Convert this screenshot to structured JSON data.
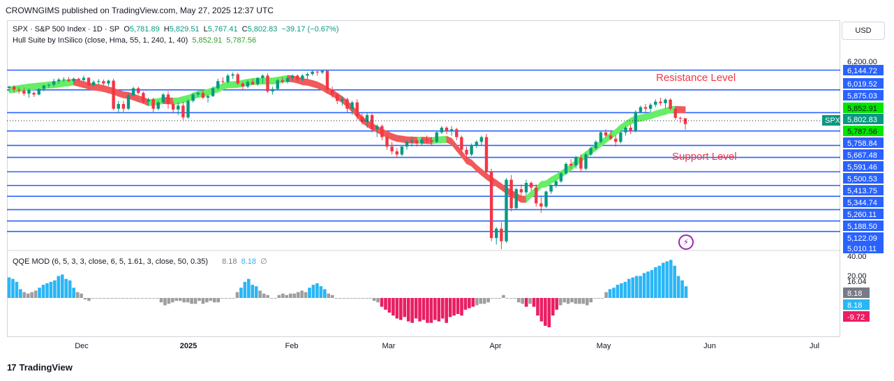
{
  "header": {
    "text": "CROWNGIMS published on TradingView.com, May 27, 2025 12:37 UTC"
  },
  "currency": "USD",
  "legend": {
    "symbol": "SPX · S&P 500 Index · 1D · SP",
    "o_label": "O",
    "o": "5,781.89",
    "h_label": "H",
    "h": "5,829.51",
    "l_label": "L",
    "l": "5,767.41",
    "c_label": "C",
    "c": "5,802.83",
    "change": "−39.17 (−0.67%)",
    "hull_label": "Hull Suite by InSilico (close, Hma, 55, 1, 240, 1, 40)",
    "hull_v1": "5,852.91",
    "hull_v2": "5,787.56",
    "qqe_label": "QQE MOD (6, 5, 3, 3, close, 6, 5, 1.61, 3, close, 50, 0.35)",
    "qqe_v1": "8.18",
    "qqe_v2": "8.18",
    "qqe_sym": "∅"
  },
  "annotations": {
    "resistance": "Resistance Level",
    "support": "Support Level"
  },
  "footer": {
    "brand": "TradingView"
  },
  "colors": {
    "up": "#089981",
    "down": "#f23645",
    "level": "#2962ff",
    "hull_up": "#66ee66",
    "hull_down": "#f05a5a",
    "qqe_up": "#29b6f6",
    "qqe_down": "#e91e63",
    "qqe_neutral": "#9e9e9e"
  },
  "chart_data": {
    "type": "candlestick",
    "title": "SPX · S&P 500 Index · 1D · SP",
    "price_ylim": [
      5010.11,
      6200.0
    ],
    "x_tick_labels": [
      "Dec",
      "2025",
      "Feb",
      "Mar",
      "Apr",
      "May",
      "Jun",
      "Jul"
    ],
    "price_axis_labels": [
      "6,200.00",
      "6,144.72",
      "6,019.52",
      "5,875.03",
      "5,852.91",
      "5,802.83",
      "5,787.56",
      "5,758.84",
      "5,667.48",
      "5,591.46",
      "5,500.53",
      "5,413.75",
      "5,344.74",
      "5,260.11",
      "5,188.50",
      "5,122.09",
      "5,010.11"
    ],
    "horizontal_levels": [
      6144.72,
      6019.52,
      5875.03,
      5758.84,
      5667.48,
      5591.46,
      5500.53,
      5413.75,
      5344.74,
      5260.11,
      5188.5,
      5122.09
    ],
    "last_price": {
      "label": "SPX",
      "value": "5,802.83"
    },
    "hull_values": [
      "5,852.91",
      "5,787.56"
    ],
    "candles": [
      [
        6032,
        6047,
        6010,
        6040
      ],
      [
        6040,
        6050,
        6002,
        6021
      ],
      [
        6021,
        6036,
        5995,
        6015
      ],
      [
        6015,
        6035,
        5982,
        5996
      ],
      [
        5996,
        6029,
        5970,
        6020
      ],
      [
        6000,
        6010,
        5975,
        5990
      ],
      [
        5990,
        6030,
        5985,
        6025
      ],
      [
        6025,
        6052,
        6010,
        6047
      ],
      [
        6047,
        6060,
        6030,
        6052
      ],
      [
        6052,
        6090,
        6040,
        6075
      ],
      [
        6075,
        6095,
        6060,
        6085
      ],
      [
        6085,
        6100,
        6070,
        6086
      ],
      [
        6086,
        6102,
        6070,
        6075
      ],
      [
        6075,
        6098,
        6060,
        6090
      ],
      [
        6090,
        6096,
        6070,
        6082
      ],
      [
        6082,
        6110,
        6075,
        6096
      ],
      [
        6096,
        6100,
        6040,
        6050
      ],
      [
        6050,
        6080,
        6040,
        6070
      ],
      [
        6070,
        6088,
        6055,
        6075
      ],
      [
        6075,
        6085,
        6050,
        6060
      ],
      [
        6060,
        6085,
        6045,
        6078
      ],
      [
        6078,
        6090,
        5890,
        5900
      ],
      [
        5900,
        5950,
        5870,
        5930
      ],
      [
        5930,
        5950,
        5880,
        5900
      ],
      [
        5900,
        6000,
        5890,
        5985
      ],
      [
        5985,
        6040,
        5980,
        6030
      ],
      [
        6030,
        6040,
        5990,
        6000
      ],
      [
        6000,
        6010,
        5930,
        5945
      ],
      [
        5945,
        5970,
        5920,
        5960
      ],
      [
        5960,
        5970,
        5880,
        5900
      ],
      [
        5900,
        5950,
        5890,
        5940
      ],
      [
        5940,
        6000,
        5930,
        5990
      ],
      [
        5990,
        6010,
        5900,
        5930
      ],
      [
        5930,
        5945,
        5870,
        5895
      ],
      [
        5895,
        5940,
        5860,
        5920
      ],
      [
        5920,
        5945,
        5830,
        5845
      ],
      [
        5845,
        5960,
        5835,
        5950
      ],
      [
        5950,
        6000,
        5940,
        5990
      ],
      [
        5990,
        6010,
        5975,
        6000
      ],
      [
        6000,
        6020,
        5960,
        5970
      ],
      [
        5970,
        5990,
        5940,
        5980
      ],
      [
        5980,
        6040,
        5975,
        6030
      ],
      [
        6030,
        6090,
        6020,
        6075
      ],
      [
        6075,
        6100,
        6060,
        6070
      ],
      [
        6070,
        6120,
        6060,
        6110
      ],
      [
        6110,
        6130,
        6090,
        6118
      ],
      [
        6118,
        6128,
        6050,
        6060
      ],
      [
        6060,
        6070,
        6020,
        6040
      ],
      [
        6040,
        6080,
        6030,
        6070
      ],
      [
        6070,
        6090,
        6050,
        6055
      ],
      [
        6055,
        6100,
        6045,
        6095
      ],
      [
        6095,
        6118,
        6060,
        6110
      ],
      [
        6110,
        6125,
        6000,
        6010
      ],
      [
        6010,
        6040,
        5990,
        6025
      ],
      [
        6025,
        6090,
        6020,
        6080
      ],
      [
        6080,
        6100,
        6060,
        6070
      ],
      [
        6070,
        6105,
        6060,
        6095
      ],
      [
        6095,
        6118,
        6080,
        6110
      ],
      [
        6110,
        6118,
        6070,
        6085
      ],
      [
        6085,
        6120,
        6075,
        6110
      ],
      [
        6110,
        6130,
        6090,
        6120
      ],
      [
        6120,
        6145,
        6110,
        6135
      ],
      [
        6135,
        6144,
        6110,
        6130
      ],
      [
        6130,
        6147,
        6120,
        6140
      ],
      [
        6140,
        6145,
        6000,
        6020
      ],
      [
        6020,
        6040,
        5970,
        5990
      ],
      [
        5990,
        6000,
        5930,
        5950
      ],
      [
        5950,
        5980,
        5920,
        5960
      ],
      [
        5960,
        5970,
        5880,
        5900
      ],
      [
        5900,
        5950,
        5860,
        5940
      ],
      [
        5940,
        5960,
        5830,
        5850
      ],
      [
        5850,
        5870,
        5800,
        5815
      ],
      [
        5815,
        5880,
        5780,
        5860
      ],
      [
        5860,
        5870,
        5750,
        5770
      ],
      [
        5770,
        5800,
        5720,
        5790
      ],
      [
        5790,
        5800,
        5700,
        5720
      ],
      [
        5720,
        5740,
        5640,
        5660
      ],
      [
        5660,
        5690,
        5610,
        5630
      ],
      [
        5630,
        5650,
        5590,
        5610
      ],
      [
        5610,
        5670,
        5600,
        5660
      ],
      [
        5660,
        5700,
        5640,
        5690
      ],
      [
        5690,
        5720,
        5660,
        5700
      ],
      [
        5700,
        5720,
        5660,
        5680
      ],
      [
        5680,
        5720,
        5670,
        5705
      ],
      [
        5705,
        5730,
        5680,
        5700
      ],
      [
        5700,
        5720,
        5670,
        5690
      ],
      [
        5690,
        5760,
        5680,
        5750
      ],
      [
        5750,
        5790,
        5740,
        5780
      ],
      [
        5780,
        5790,
        5740,
        5760
      ],
      [
        5760,
        5790,
        5730,
        5770
      ],
      [
        5770,
        5780,
        5700,
        5720
      ],
      [
        5720,
        5730,
        5620,
        5640
      ],
      [
        5640,
        5660,
        5580,
        5610
      ],
      [
        5610,
        5680,
        5600,
        5670
      ],
      [
        5670,
        5700,
        5650,
        5690
      ],
      [
        5690,
        5730,
        5670,
        5720
      ],
      [
        5720,
        5740,
        5480,
        5500
      ],
      [
        5500,
        5520,
        5060,
        5080
      ],
      [
        5080,
        5150,
        5040,
        5140
      ],
      [
        5140,
        5180,
        5010,
        5060
      ],
      [
        5060,
        5460,
        5050,
        5450
      ],
      [
        5450,
        5480,
        5250,
        5270
      ],
      [
        5270,
        5400,
        5260,
        5390
      ],
      [
        5390,
        5420,
        5340,
        5370
      ],
      [
        5370,
        5450,
        5350,
        5430
      ],
      [
        5430,
        5440,
        5380,
        5400
      ],
      [
        5400,
        5420,
        5280,
        5300
      ],
      [
        5300,
        5340,
        5240,
        5280
      ],
      [
        5280,
        5380,
        5270,
        5375
      ],
      [
        5375,
        5420,
        5360,
        5410
      ],
      [
        5410,
        5450,
        5400,
        5440
      ],
      [
        5440,
        5500,
        5430,
        5490
      ],
      [
        5490,
        5560,
        5480,
        5550
      ],
      [
        5550,
        5580,
        5520,
        5540
      ],
      [
        5540,
        5600,
        5520,
        5590
      ],
      [
        5590,
        5610,
        5500,
        5520
      ],
      [
        5520,
        5620,
        5510,
        5610
      ],
      [
        5610,
        5660,
        5600,
        5650
      ],
      [
        5650,
        5700,
        5640,
        5690
      ],
      [
        5690,
        5760,
        5680,
        5750
      ],
      [
        5750,
        5770,
        5720,
        5730
      ],
      [
        5730,
        5760,
        5700,
        5710
      ],
      [
        5710,
        5730,
        5660,
        5690
      ],
      [
        5690,
        5760,
        5680,
        5750
      ],
      [
        5750,
        5790,
        5730,
        5780
      ],
      [
        5780,
        5800,
        5740,
        5760
      ],
      [
        5760,
        5890,
        5750,
        5880
      ],
      [
        5880,
        5920,
        5870,
        5910
      ],
      [
        5910,
        5930,
        5880,
        5900
      ],
      [
        5900,
        5935,
        5880,
        5925
      ],
      [
        5925,
        5960,
        5910,
        5945
      ],
      [
        5945,
        5970,
        5920,
        5935
      ],
      [
        5935,
        5965,
        5900,
        5958
      ],
      [
        5958,
        5965,
        5890,
        5900
      ],
      [
        5900,
        5910,
        5830,
        5842
      ],
      [
        5842,
        5850,
        5810,
        5840
      ],
      [
        5840,
        5830,
        5767,
        5803
      ]
    ],
    "qqe_ylim": [
      -30,
      40
    ],
    "qqe_axis_labels": [
      "40.00",
      "20.00",
      "16.04",
      "8.18",
      "8.18",
      "-9.72"
    ],
    "qqe_values": [
      14,
      13,
      11,
      6,
      4,
      3,
      4,
      5,
      7,
      9,
      10,
      11,
      12,
      15,
      16,
      13,
      12,
      7,
      4,
      3,
      -1,
      -2,
      0,
      0,
      0,
      0,
      0,
      0,
      0,
      0,
      0,
      0,
      0,
      0,
      0,
      0,
      0,
      0,
      0,
      0,
      -3,
      -5,
      -4,
      -3,
      -2,
      -2,
      -3,
      -3,
      -4,
      -4,
      -2,
      -4,
      -3,
      -2,
      -3,
      -3,
      0,
      0,
      0,
      0,
      4,
      7,
      11,
      13,
      9,
      8,
      5,
      3,
      2,
      0,
      0,
      2,
      3,
      2,
      3,
      3,
      4,
      5,
      4,
      7,
      9,
      10,
      8,
      6,
      3,
      2,
      0,
      0,
      0,
      0,
      0,
      0,
      0,
      0,
      0,
      0,
      -2,
      -3,
      -6,
      -8,
      -10,
      -12,
      -14,
      -15,
      -13,
      -16,
      -17,
      -14,
      -16,
      -15,
      -17,
      -17,
      -15,
      -16,
      -14,
      -17,
      -13,
      -12,
      -11,
      -12,
      -8,
      -7,
      -6,
      -5,
      -4,
      -4,
      -3,
      0,
      0,
      0,
      2,
      0,
      0,
      0,
      -3,
      -4,
      -6,
      -4,
      -6,
      -12,
      -16,
      -19,
      -20,
      -12,
      -8,
      -5,
      -3,
      -4,
      -3,
      -4,
      -4,
      -4,
      -5,
      -3,
      0,
      0,
      0,
      4,
      6,
      7,
      9,
      10,
      11,
      13,
      14,
      15,
      15,
      17,
      18,
      19,
      21,
      22,
      24,
      25,
      26,
      22,
      15,
      12,
      8
    ]
  }
}
